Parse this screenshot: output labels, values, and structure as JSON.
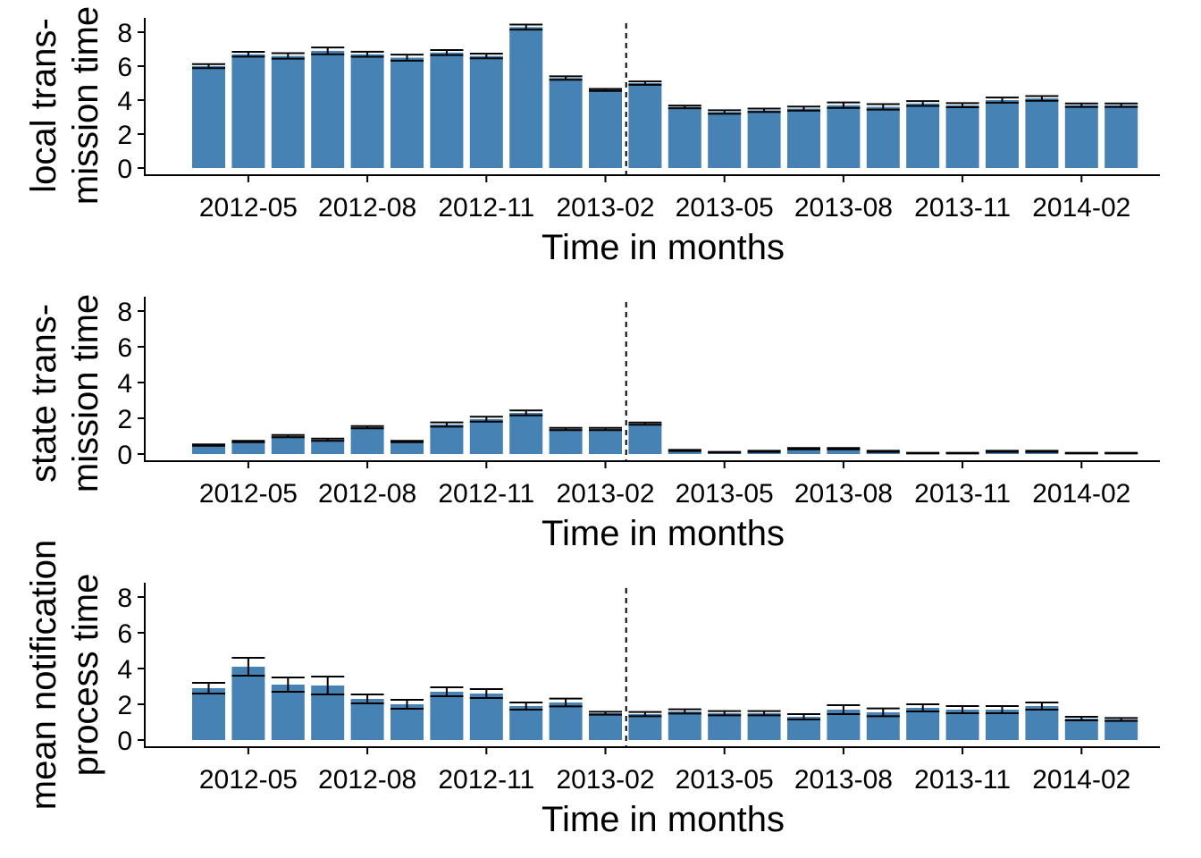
{
  "colors": {
    "bar": "#4682B4",
    "axis": "#000000",
    "errorbar": "#000000",
    "marker_line": "#000000"
  },
  "chart_data": [
    {
      "type": "bar",
      "ylabel_lines": [
        "local trans-",
        "mission time"
      ],
      "xlabel": "Time in months",
      "ylim": [
        0,
        8
      ],
      "yticks": [
        0,
        2,
        4,
        6,
        8
      ],
      "xticks": [
        "2012-05",
        "2012-08",
        "2012-11",
        "2013-02",
        "2013-05",
        "2013-08",
        "2013-11",
        "2014-02"
      ],
      "months": [
        "2012-04",
        "2012-05",
        "2012-06",
        "2012-07",
        "2012-08",
        "2012-09",
        "2012-10",
        "2012-11",
        "2012-12",
        "2013-01",
        "2013-02",
        "2013-03",
        "2013-04",
        "2013-05",
        "2013-06",
        "2013-07",
        "2013-08",
        "2013-09",
        "2013-10",
        "2013-11",
        "2013-12",
        "2014-01",
        "2014-02",
        "2014-03"
      ],
      "values": [
        6.0,
        6.7,
        6.6,
        6.9,
        6.7,
        6.5,
        6.8,
        6.6,
        8.3,
        5.3,
        4.6,
        5.0,
        3.6,
        3.3,
        3.4,
        3.5,
        3.7,
        3.6,
        3.8,
        3.7,
        4.0,
        4.1,
        3.7,
        3.7
      ],
      "errors": [
        0.12,
        0.14,
        0.16,
        0.2,
        0.15,
        0.18,
        0.15,
        0.14,
        0.15,
        0.1,
        0.06,
        0.1,
        0.08,
        0.1,
        0.1,
        0.12,
        0.16,
        0.16,
        0.14,
        0.12,
        0.15,
        0.14,
        0.1,
        0.1
      ],
      "reference_line_x": "2013-03"
    },
    {
      "type": "bar",
      "ylabel_lines": [
        "state trans-",
        "mission time"
      ],
      "xlabel": "Time in months",
      "ylim": [
        0,
        8
      ],
      "yticks": [
        0,
        2,
        4,
        6,
        8
      ],
      "xticks": [
        "2012-05",
        "2012-08",
        "2012-11",
        "2013-02",
        "2013-05",
        "2013-08",
        "2013-11",
        "2014-02"
      ],
      "months": [
        "2012-04",
        "2012-05",
        "2012-06",
        "2012-07",
        "2012-08",
        "2012-09",
        "2012-10",
        "2012-11",
        "2012-12",
        "2013-01",
        "2013-02",
        "2013-03",
        "2013-04",
        "2013-05",
        "2013-06",
        "2013-07",
        "2013-08",
        "2013-09",
        "2013-10",
        "2013-11",
        "2013-12",
        "2014-01",
        "2014-02",
        "2014-03"
      ],
      "values": [
        0.5,
        0.7,
        1.0,
        0.8,
        1.5,
        0.7,
        1.65,
        1.95,
        2.3,
        1.4,
        1.4,
        1.7,
        0.2,
        0.1,
        0.15,
        0.3,
        0.3,
        0.15,
        0.05,
        0.05,
        0.15,
        0.15,
        0.05,
        0.05
      ],
      "errors": [
        0.04,
        0.04,
        0.06,
        0.06,
        0.06,
        0.04,
        0.12,
        0.14,
        0.14,
        0.06,
        0.06,
        0.06,
        0.03,
        0.02,
        0.03,
        0.04,
        0.04,
        0.03,
        0.02,
        0.02,
        0.03,
        0.03,
        0.02,
        0.02
      ],
      "reference_line_x": "2013-03"
    },
    {
      "type": "bar",
      "ylabel_lines": [
        "mean notification",
        "process time"
      ],
      "xlabel": "Time in months",
      "ylim": [
        0,
        8
      ],
      "yticks": [
        0,
        2,
        4,
        6,
        8
      ],
      "xticks": [
        "2012-05",
        "2012-08",
        "2012-11",
        "2013-02",
        "2013-05",
        "2013-08",
        "2013-11",
        "2014-02"
      ],
      "months": [
        "2012-04",
        "2012-05",
        "2012-06",
        "2012-07",
        "2012-08",
        "2012-09",
        "2012-10",
        "2012-11",
        "2012-12",
        "2013-01",
        "2013-02",
        "2013-03",
        "2013-04",
        "2013-05",
        "2013-06",
        "2013-07",
        "2013-08",
        "2013-09",
        "2013-10",
        "2013-11",
        "2013-12",
        "2014-01",
        "2014-02",
        "2014-03"
      ],
      "values": [
        2.9,
        4.1,
        3.1,
        3.05,
        2.3,
        2.0,
        2.7,
        2.6,
        1.9,
        2.1,
        1.5,
        1.45,
        1.6,
        1.5,
        1.5,
        1.3,
        1.7,
        1.55,
        1.8,
        1.7,
        1.7,
        1.9,
        1.2,
        1.15
      ],
      "errors": [
        0.3,
        0.5,
        0.4,
        0.5,
        0.25,
        0.25,
        0.25,
        0.25,
        0.2,
        0.22,
        0.08,
        0.12,
        0.12,
        0.12,
        0.12,
        0.15,
        0.25,
        0.22,
        0.2,
        0.2,
        0.2,
        0.2,
        0.1,
        0.08
      ],
      "reference_line_x": "2013-03"
    }
  ]
}
